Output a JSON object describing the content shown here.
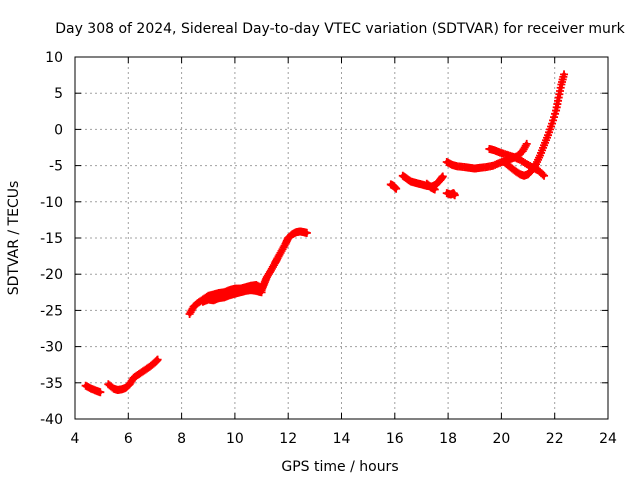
{
  "chart_data": {
    "type": "scatter",
    "title": "Day 308 of 2024, Sidereal Day-to-day VTEC variation (SDTVAR) for receiver murk",
    "xlabel": "GPS time / hours",
    "ylabel": "SDTVAR / TECUs",
    "xlim": [
      4,
      24
    ],
    "ylim": [
      -40,
      10
    ],
    "xticks": [
      4,
      6,
      8,
      10,
      12,
      14,
      16,
      18,
      20,
      22,
      24
    ],
    "yticks": [
      -40,
      -35,
      -30,
      -25,
      -20,
      -15,
      -10,
      -5,
      0,
      5,
      10
    ],
    "grid": true,
    "series": [
      {
        "name": "SDTVAR",
        "color": "#ff0000",
        "marker": "plus",
        "segments": [
          [
            [
              4.4,
              -35.4
            ],
            [
              4.6,
              -35.8
            ],
            [
              4.8,
              -36.1
            ],
            [
              4.95,
              -36.3
            ]
          ],
          [
            [
              5.25,
              -35.2
            ],
            [
              5.45,
              -35.8
            ],
            [
              5.6,
              -36.0
            ],
            [
              5.75,
              -35.9
            ],
            [
              5.9,
              -35.7
            ],
            [
              6.05,
              -35.2
            ],
            [
              6.2,
              -34.3
            ],
            [
              6.4,
              -33.8
            ],
            [
              6.6,
              -33.3
            ],
            [
              6.8,
              -32.8
            ],
            [
              7.0,
              -32.2
            ],
            [
              7.1,
              -31.8
            ]
          ],
          [
            [
              8.3,
              -25.5
            ],
            [
              8.45,
              -24.5
            ],
            [
              8.6,
              -24.0
            ],
            [
              8.8,
              -23.5
            ],
            [
              9.0,
              -23.0
            ],
            [
              9.2,
              -22.8
            ],
            [
              9.4,
              -22.6
            ],
            [
              9.6,
              -22.5
            ],
            [
              9.8,
              -22.2
            ],
            [
              10.0,
              -22.0
            ],
            [
              10.2,
              -22.0
            ],
            [
              10.4,
              -21.8
            ],
            [
              10.6,
              -21.6
            ],
            [
              10.8,
              -21.5
            ],
            [
              11.0,
              -21.9
            ]
          ],
          [
            [
              8.8,
              -23.8
            ],
            [
              9.0,
              -23.5
            ],
            [
              9.2,
              -23.6
            ],
            [
              9.4,
              -23.3
            ],
            [
              9.6,
              -23.2
            ],
            [
              9.8,
              -22.9
            ],
            [
              10.0,
              -22.7
            ],
            [
              10.2,
              -22.5
            ],
            [
              10.4,
              -22.3
            ],
            [
              10.6,
              -22.2
            ],
            [
              10.8,
              -22.3
            ],
            [
              11.0,
              -22.5
            ]
          ],
          [
            [
              11.0,
              -22.2
            ],
            [
              11.1,
              -21.3
            ],
            [
              11.2,
              -20.4
            ],
            [
              11.35,
              -19.5
            ],
            [
              11.5,
              -18.5
            ],
            [
              11.6,
              -17.8
            ],
            [
              11.75,
              -16.8
            ],
            [
              11.9,
              -15.8
            ],
            [
              12.0,
              -15.0
            ],
            [
              12.15,
              -14.5
            ],
            [
              12.3,
              -14.2
            ],
            [
              12.45,
              -14.1
            ],
            [
              12.6,
              -14.2
            ],
            [
              12.7,
              -14.3
            ]
          ],
          [
            [
              15.85,
              -7.6
            ],
            [
              15.95,
              -7.8
            ],
            [
              16.05,
              -8.2
            ]
          ],
          [
            [
              16.3,
              -6.4
            ],
            [
              16.45,
              -6.8
            ],
            [
              16.6,
              -7.2
            ],
            [
              16.8,
              -7.4
            ],
            [
              17.0,
              -7.6
            ],
            [
              17.2,
              -7.8
            ],
            [
              17.4,
              -7.9
            ],
            [
              17.55,
              -7.6
            ],
            [
              17.7,
              -7.0
            ],
            [
              17.8,
              -6.5
            ]
          ],
          [
            [
              17.2,
              -7.5
            ],
            [
              17.35,
              -8.0
            ],
            [
              17.5,
              -8.3
            ]
          ],
          [
            [
              17.95,
              -8.8
            ],
            [
              18.1,
              -9.0
            ],
            [
              18.2,
              -8.8
            ],
            [
              18.25,
              -9.1
            ]
          ],
          [
            [
              17.95,
              -4.5
            ],
            [
              18.15,
              -4.9
            ],
            [
              18.35,
              -5.1
            ],
            [
              18.6,
              -5.2
            ],
            [
              18.8,
              -5.3
            ],
            [
              19.0,
              -5.4
            ],
            [
              19.2,
              -5.3
            ],
            [
              19.45,
              -5.2
            ],
            [
              19.7,
              -5.0
            ],
            [
              19.95,
              -4.6
            ],
            [
              20.2,
              -4.3
            ],
            [
              20.4,
              -4.0
            ],
            [
              20.6,
              -3.7
            ],
            [
              20.8,
              -3.0
            ],
            [
              20.95,
              -2.0
            ]
          ],
          [
            [
              19.55,
              -2.7
            ],
            [
              19.75,
              -2.9
            ],
            [
              19.95,
              -3.2
            ],
            [
              20.2,
              -3.5
            ],
            [
              20.45,
              -3.8
            ],
            [
              20.7,
              -4.2
            ],
            [
              20.95,
              -4.8
            ],
            [
              21.2,
              -5.3
            ],
            [
              21.4,
              -5.7
            ],
            [
              21.6,
              -6.4
            ]
          ],
          [
            [
              20.1,
              -4.5
            ],
            [
              20.3,
              -5.1
            ],
            [
              20.5,
              -5.7
            ],
            [
              20.7,
              -6.2
            ],
            [
              20.85,
              -6.4
            ],
            [
              21.0,
              -6.2
            ],
            [
              21.15,
              -5.6
            ],
            [
              21.3,
              -4.8
            ],
            [
              21.45,
              -3.6
            ],
            [
              21.6,
              -2.2
            ],
            [
              21.75,
              -0.8
            ],
            [
              21.9,
              0.8
            ],
            [
              22.05,
              2.6
            ],
            [
              22.15,
              4.4
            ],
            [
              22.25,
              6.2
            ],
            [
              22.35,
              7.6
            ]
          ]
        ]
      }
    ]
  }
}
